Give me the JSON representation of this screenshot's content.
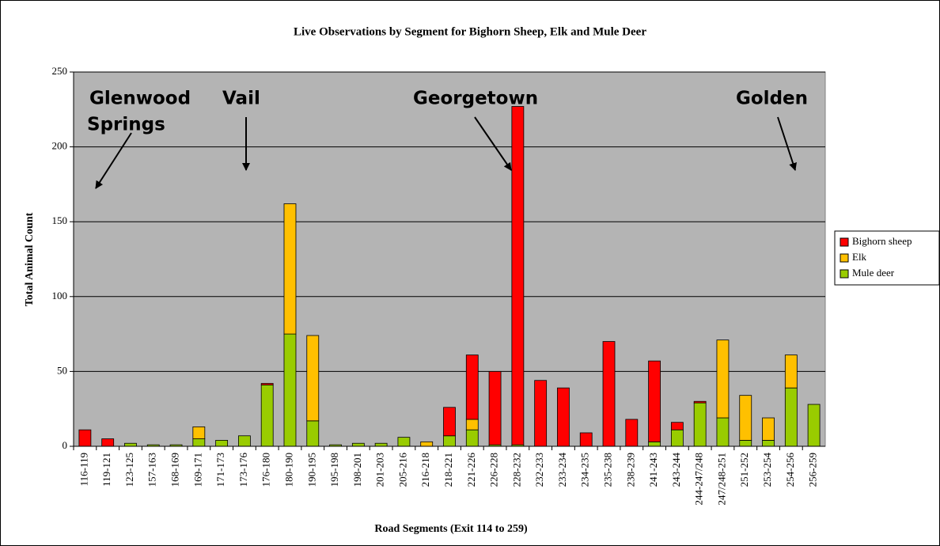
{
  "chart_data": {
    "type": "bar",
    "stacked": true,
    "title": "Live Observations by Segment for Bighorn Sheep, Elk and Mule Deer",
    "xlabel": "Road Segments (Exit 114 to 259)",
    "ylabel": "Total Animal Count",
    "categories": [
      "116-119",
      "119-121",
      "123-125",
      "157-163",
      "168-169",
      "169-171",
      "171-173",
      "173-176",
      "176-180",
      "180-190",
      "190-195",
      "195-198",
      "198-201",
      "201-203",
      "205-216",
      "216-218",
      "218-221",
      "221-226",
      "226-228",
      "228-232",
      "232-233",
      "233-234",
      "234-235",
      "235-238",
      "238-239",
      "241-243",
      "243-244",
      "244-247/248",
      "247/248-251",
      "251-252",
      "253-254",
      "254-256",
      "256-259"
    ],
    "series": [
      {
        "name": "Bighorn sheep",
        "color": "#ff0000",
        "values": [
          11,
          5,
          0,
          0,
          0,
          0,
          0,
          0,
          1,
          0,
          0,
          0,
          0,
          0,
          0,
          0,
          19,
          43,
          49,
          226,
          44,
          39,
          9,
          70,
          18,
          54,
          5,
          1,
          0,
          0,
          0,
          0,
          0
        ]
      },
      {
        "name": "Elk",
        "color": "#ffc000",
        "values": [
          0,
          0,
          0,
          0,
          0,
          8,
          0,
          0,
          0,
          87,
          57,
          0,
          0,
          0,
          0,
          3,
          0,
          7,
          0,
          0,
          0,
          0,
          0,
          0,
          0,
          0,
          0,
          0,
          52,
          30,
          15,
          22,
          0
        ]
      },
      {
        "name": "Mule deer",
        "color": "#99cc00",
        "values": [
          0,
          0,
          2,
          1,
          1,
          5,
          4,
          7,
          41,
          75,
          17,
          1,
          2,
          2,
          6,
          0,
          7,
          11,
          1,
          1,
          0,
          0,
          0,
          0,
          0,
          3,
          11,
          29,
          19,
          4,
          4,
          39,
          28
        ]
      }
    ],
    "ylim": [
      0,
      250
    ],
    "yticks": [
      0,
      50,
      100,
      150,
      200,
      250
    ],
    "grid": true,
    "legend": "right",
    "annotations": [
      {
        "lines": [
          "Glenwood",
          "Springs"
        ]
      },
      {
        "lines": [
          "Vail"
        ]
      },
      {
        "lines": [
          "Georgetown"
        ]
      },
      {
        "lines": [
          "Golden"
        ]
      }
    ]
  }
}
